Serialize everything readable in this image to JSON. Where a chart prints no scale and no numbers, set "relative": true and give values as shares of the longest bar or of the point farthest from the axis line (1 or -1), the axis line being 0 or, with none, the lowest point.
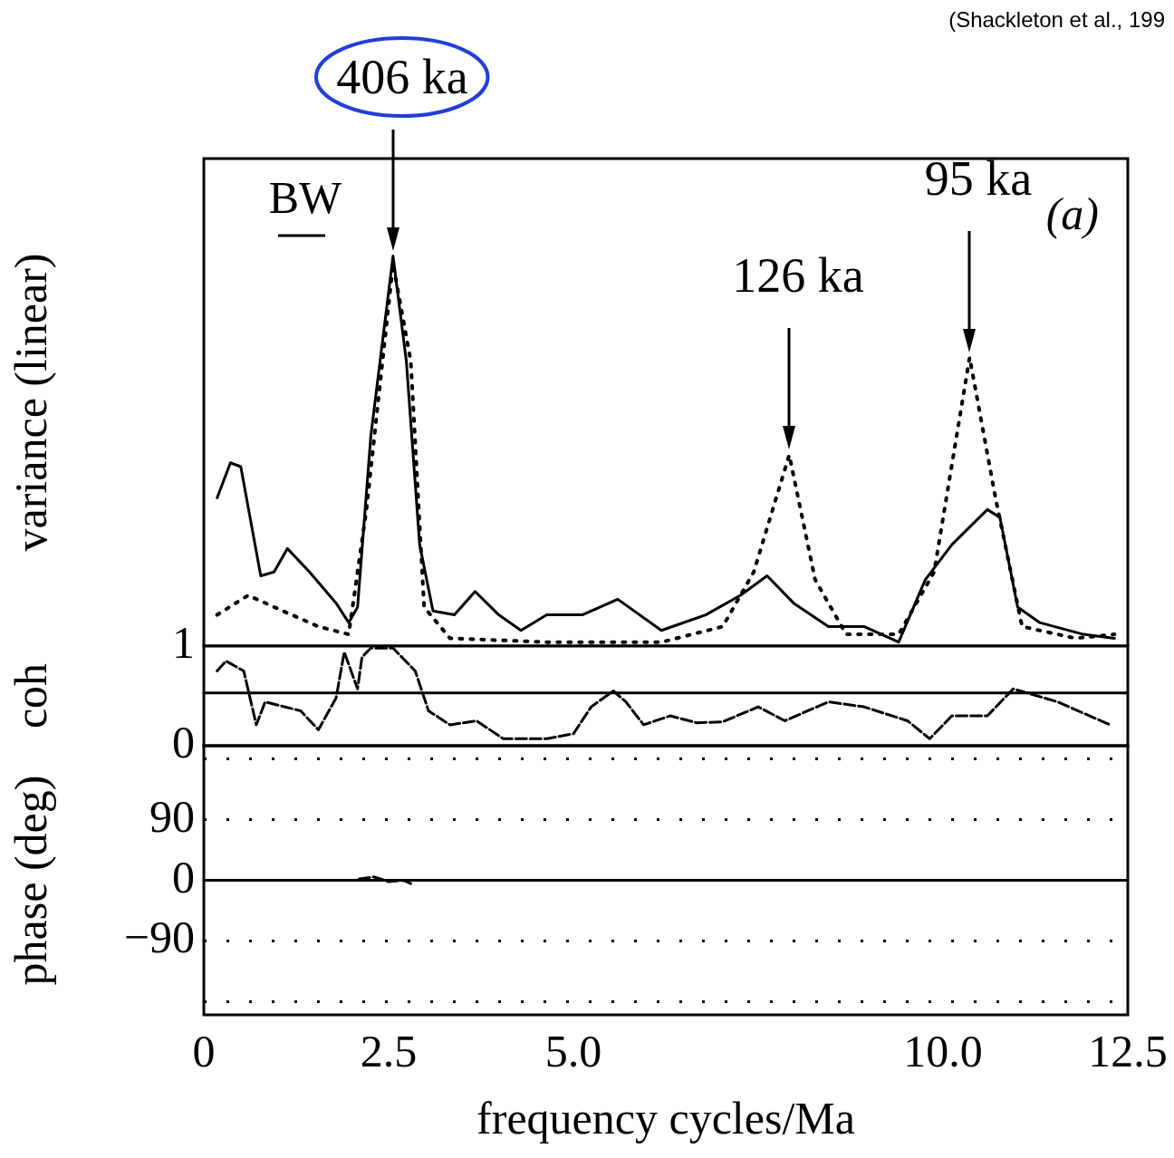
{
  "chart_data": [
    {
      "type": "line",
      "ylabel": "variance (linear)",
      "relative": true,
      "xlim": [
        0,
        12.5
      ],
      "tick_labels": false,
      "annotations": [
        "406 ka",
        "126 ka",
        "95 ka",
        "BW",
        "(a)",
        "(Shackleton et al., 199"
      ],
      "series": [
        {
          "color": "#000000",
          "line_style": "solid",
          "x": [
            0.18,
            0.36,
            0.5,
            0.77,
            0.95,
            1.13,
            1.43,
            1.79,
            1.96,
            2.08,
            2.26,
            2.56,
            2.74,
            2.92,
            3.1,
            3.39,
            3.67,
            3.99,
            4.29,
            4.64,
            5.12,
            5.6,
            6.19,
            6.79,
            7.26,
            7.62,
            7.98,
            8.45,
            8.93,
            9.4,
            9.76,
            10.12,
            10.6,
            10.77,
            11.01,
            11.31,
            11.9,
            12.32
          ],
          "values": [
            0.38,
            0.47,
            0.46,
            0.18,
            0.19,
            0.25,
            0.19,
            0.11,
            0.06,
            0.1,
            0.54,
            1.0,
            0.73,
            0.26,
            0.09,
            0.08,
            0.14,
            0.08,
            0.04,
            0.08,
            0.08,
            0.12,
            0.04,
            0.08,
            0.13,
            0.18,
            0.11,
            0.05,
            0.05,
            0.01,
            0.17,
            0.26,
            0.35,
            0.33,
            0.1,
            0.06,
            0.03,
            0.02
          ]
        },
        {
          "color": "#000000",
          "line_style": "dotted",
          "x": [
            0.18,
            0.6,
            1.07,
            1.55,
            1.96,
            2.2,
            2.56,
            2.8,
            2.98,
            3.33,
            4.64,
            6.19,
            7.02,
            7.44,
            7.92,
            8.27,
            8.69,
            9.4,
            9.88,
            10.36,
            10.71,
            11.07,
            11.79,
            12.32
          ],
          "values": [
            0.08,
            0.13,
            0.09,
            0.05,
            0.03,
            0.35,
            0.98,
            0.73,
            0.1,
            0.02,
            0.01,
            0.01,
            0.05,
            0.19,
            0.49,
            0.17,
            0.03,
            0.03,
            0.19,
            0.74,
            0.38,
            0.05,
            0.02,
            0.03
          ]
        }
      ]
    },
    {
      "type": "line",
      "ylabel": "coh",
      "xlim": [
        0,
        12.5
      ],
      "ylim": [
        0,
        1
      ],
      "yticks": [
        0,
        1
      ],
      "tick_labels": "y",
      "ref_lines": [
        {
          "axis": "y",
          "value": 0.53,
          "color": "#000000",
          "line_style": "solid"
        }
      ],
      "series": [
        {
          "color": "#000000",
          "line_style": "dashed",
          "x": [
            0.18,
            0.3,
            0.54,
            0.71,
            0.83,
            1.31,
            1.55,
            1.79,
            1.9,
            2.08,
            2.14,
            2.26,
            2.56,
            2.86,
            3.04,
            3.33,
            3.69,
            4.05,
            4.64,
            5.0,
            5.24,
            5.54,
            5.71,
            5.95,
            6.31,
            6.67,
            7.02,
            7.5,
            7.86,
            8.45,
            8.93,
            9.52,
            9.82,
            10.12,
            10.6,
            10.95,
            11.55,
            12.26
          ],
          "values": [
            0.75,
            0.85,
            0.75,
            0.21,
            0.44,
            0.35,
            0.16,
            0.48,
            0.94,
            0.57,
            0.89,
            0.98,
            0.98,
            0.75,
            0.35,
            0.21,
            0.25,
            0.07,
            0.07,
            0.12,
            0.39,
            0.55,
            0.44,
            0.21,
            0.3,
            0.23,
            0.24,
            0.39,
            0.25,
            0.44,
            0.39,
            0.25,
            0.07,
            0.3,
            0.3,
            0.57,
            0.44,
            0.21
          ]
        }
      ]
    },
    {
      "type": "line",
      "ylabel": "phase (deg)",
      "xlabel": "frequency cycles/Ma",
      "xlim": [
        0,
        12.5
      ],
      "ylim": [
        -200,
        200
      ],
      "xticks": [
        0,
        2.5,
        {
          "value": 5,
          "label": "5.0"
        },
        {
          "value": 10,
          "label": "10.0"
        },
        12.5
      ],
      "yticks": [
        {
          "value": 180,
          "label": null
        },
        90,
        0,
        -90,
        {
          "value": -180,
          "label": null
        }
      ],
      "grid": "y",
      "ref_lines": [
        {
          "axis": "y",
          "value": 0,
          "color": "#000000",
          "line_style": "solid"
        }
      ],
      "series": [
        {
          "color": "#000000",
          "line_style": "dashed",
          "x": [
            2.1,
            2.3,
            2.5,
            2.7,
            2.8
          ],
          "values": [
            2,
            5,
            -2,
            0,
            -5
          ]
        }
      ]
    }
  ]
}
